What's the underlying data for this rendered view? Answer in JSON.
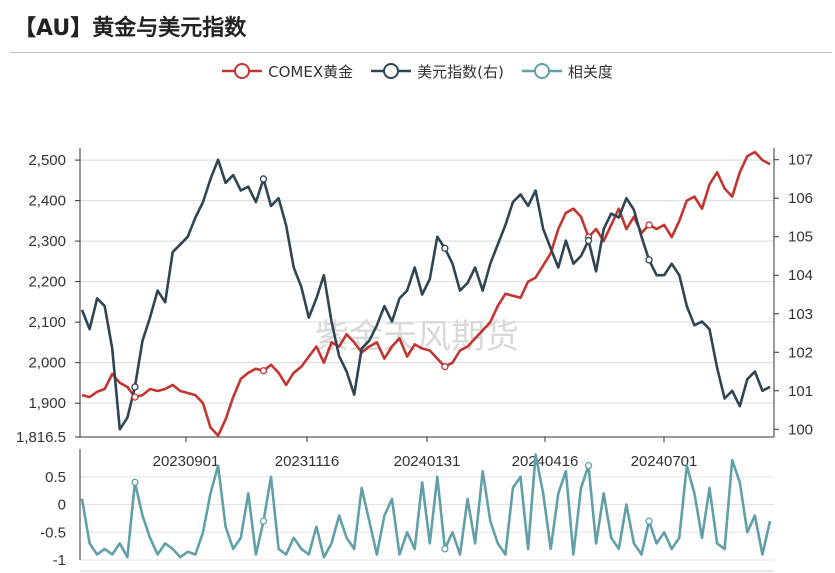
{
  "title": "【AU】黄金与美元指数",
  "watermark": "紫金天风期货",
  "chart_data": [
    {
      "type": "line",
      "name": "main",
      "x_tick_labels": [
        "20230901",
        "20231116",
        "20240131",
        "20240416",
        "20240701"
      ],
      "left_axis": {
        "ticks": [
          "2,500",
          "2,400",
          "2,300",
          "2,200",
          "2,100",
          "2,000",
          "1,900",
          "1,816.5"
        ],
        "min": 1816.5,
        "max": 2520
      },
      "right_axis": {
        "ticks": [
          "107",
          "106",
          "105",
          "104",
          "103",
          "102",
          "101",
          "100"
        ],
        "min": 99.8,
        "max": 107.2
      },
      "series": [
        {
          "name": "COMEX黄金",
          "axis": "left",
          "color": "#c23531",
          "values": [
            1920,
            1915,
            1928,
            1935,
            1972,
            1950,
            1940,
            1915,
            1920,
            1935,
            1930,
            1935,
            1945,
            1930,
            1925,
            1920,
            1900,
            1840,
            1820,
            1860,
            1915,
            1960,
            1975,
            1985,
            1980,
            1995,
            1975,
            1945,
            1975,
            1990,
            2015,
            2040,
            2000,
            2050,
            2040,
            2070,
            2050,
            2025,
            2040,
            2050,
            2010,
            2040,
            2060,
            2015,
            2045,
            2035,
            2030,
            2010,
            1990,
            2000,
            2030,
            2040,
            2060,
            2080,
            2100,
            2140,
            2170,
            2165,
            2160,
            2200,
            2210,
            2240,
            2270,
            2330,
            2370,
            2380,
            2360,
            2310,
            2330,
            2300,
            2340,
            2380,
            2330,
            2360,
            2320,
            2340,
            2330,
            2340,
            2310,
            2350,
            2400,
            2410,
            2380,
            2440,
            2470,
            2430,
            2410,
            2470,
            2510,
            2520,
            2500,
            2490
          ]
        },
        {
          "name": "美元指数(右)",
          "axis": "right",
          "color": "#2f4554",
          "values": [
            103.1,
            102.6,
            103.4,
            103.2,
            102.1,
            100.0,
            100.3,
            101.1,
            102.3,
            102.9,
            103.6,
            103.3,
            104.6,
            104.8,
            105.0,
            105.5,
            105.9,
            106.5,
            107.0,
            106.4,
            106.6,
            106.2,
            106.3,
            105.9,
            106.5,
            105.8,
            106.0,
            105.3,
            104.2,
            103.7,
            102.9,
            103.4,
            104.0,
            102.8,
            101.9,
            101.5,
            100.9,
            102.1,
            102.3,
            102.7,
            103.2,
            102.8,
            103.4,
            103.6,
            104.2,
            103.5,
            103.9,
            105.0,
            104.7,
            104.3,
            103.6,
            103.8,
            104.2,
            103.6,
            104.3,
            104.8,
            105.3,
            105.9,
            106.1,
            105.8,
            106.2,
            105.2,
            104.7,
            104.2,
            104.9,
            104.3,
            104.5,
            104.9,
            104.1,
            105.2,
            105.6,
            105.5,
            106.0,
            105.7,
            105.0,
            104.4,
            104.0,
            104.0,
            104.3,
            104.0,
            103.2,
            102.7,
            102.8,
            102.6,
            101.6,
            100.8,
            101.0,
            100.6,
            101.3,
            101.5,
            101.0,
            101.1
          ]
        },
        {
          "name": "相关度",
          "axis": "bottom",
          "color": "#61a0a8",
          "values": [
            0.1,
            -0.7,
            -0.9,
            -0.8,
            -0.9,
            -0.7,
            -0.95,
            0.4,
            -0.2,
            -0.6,
            -0.9,
            -0.7,
            -0.8,
            -0.95,
            -0.85,
            -0.9,
            -0.5,
            0.2,
            0.7,
            -0.4,
            -0.8,
            -0.6,
            0.2,
            -0.9,
            -0.3,
            0.5,
            -0.8,
            -0.9,
            -0.6,
            -0.8,
            -0.9,
            -0.4,
            -0.95,
            -0.7,
            -0.2,
            -0.6,
            -0.8,
            0.3,
            -0.3,
            -0.9,
            -0.2,
            0.1,
            -0.9,
            -0.5,
            -0.8,
            0.4,
            -0.7,
            0.5,
            -0.8,
            -0.5,
            -0.9,
            0.1,
            -0.7,
            0.6,
            -0.3,
            -0.7,
            -0.9,
            0.3,
            0.5,
            -0.8,
            0.9,
            0.2,
            -0.8,
            0.2,
            0.6,
            -0.9,
            0.3,
            0.7,
            -0.7,
            0.2,
            -0.6,
            -0.8,
            0.0,
            -0.7,
            -0.9,
            -0.3,
            -0.7,
            -0.5,
            -0.8,
            -0.6,
            0.7,
            0.2,
            -0.6,
            0.3,
            -0.7,
            -0.8,
            0.8,
            0.4,
            -0.5,
            -0.2,
            -0.9,
            -0.3
          ]
        }
      ],
      "marked_points": [
        7,
        24,
        48,
        67,
        75
      ],
      "bottom_axis": {
        "ticks": [
          "0.5",
          "0",
          "-0.5",
          "-1"
        ],
        "min": -1,
        "max": 1
      }
    }
  ]
}
